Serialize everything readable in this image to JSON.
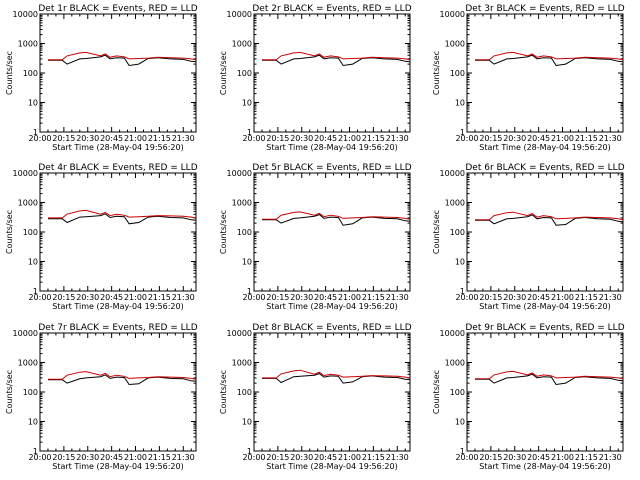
{
  "chart_data": [
    {
      "type": "line",
      "title": "Det 1r BLACK = Events, RED = LLD",
      "xlabel": "Start Time (28-May-04 19:56:20)",
      "ylabel": "Counts/sec",
      "x_ticks": [
        "20:00",
        "20:15",
        "20:30",
        "20:45",
        "21:00",
        "21:15",
        "21:30"
      ],
      "y_ticks": [
        "1",
        "10",
        "100",
        "1000",
        "10000"
      ],
      "yscale": "log",
      "ylim": [
        1,
        10000
      ],
      "x_range": [
        "20:00",
        "21:38"
      ],
      "series": [
        {
          "color": "#000000",
          "x": [
            "20:05",
            "20:14",
            "20:17",
            "20:25",
            "20:29",
            "20:38",
            "20:41",
            "20:44",
            "20:48",
            "20:53",
            "20:56",
            "21:02",
            "21:08",
            "21:14",
            "21:22",
            "21:30",
            "21:35",
            "21:38"
          ],
          "values": [
            270,
            270,
            200,
            300,
            310,
            350,
            400,
            300,
            330,
            320,
            180,
            200,
            310,
            330,
            300,
            290,
            250,
            240
          ]
        },
        {
          "color": "#cc0000",
          "x": [
            "20:05",
            "20:14",
            "20:17",
            "20:25",
            "20:29",
            "20:38",
            "20:41",
            "20:44",
            "20:48",
            "20:53",
            "20:56",
            "21:02",
            "21:08",
            "21:14",
            "21:22",
            "21:30",
            "21:35",
            "21:38"
          ],
          "values": [
            280,
            280,
            380,
            480,
            500,
            380,
            440,
            340,
            380,
            350,
            300,
            310,
            320,
            340,
            330,
            320,
            300,
            280
          ]
        }
      ]
    },
    {
      "type": "line",
      "title": "Det 2r BLACK = Events, RED = LLD",
      "xlabel": "Start Time (28-May-04 19:56:20)",
      "ylabel": "Counts/sec",
      "x_ticks": [
        "20:00",
        "20:15",
        "20:30",
        "20:45",
        "21:00",
        "21:15",
        "21:30"
      ],
      "y_ticks": [
        "1",
        "10",
        "100",
        "1000",
        "10000"
      ],
      "yscale": "log",
      "ylim": [
        1,
        10000
      ],
      "x_range": [
        "20:00",
        "21:38"
      ],
      "series": [
        {
          "color": "#000000",
          "x": [
            "20:05",
            "20:14",
            "20:17",
            "20:25",
            "20:29",
            "20:38",
            "20:41",
            "20:44",
            "20:48",
            "20:53",
            "20:56",
            "21:02",
            "21:08",
            "21:14",
            "21:22",
            "21:30",
            "21:35",
            "21:38"
          ],
          "values": [
            270,
            270,
            200,
            300,
            310,
            350,
            400,
            300,
            330,
            320,
            180,
            200,
            310,
            330,
            300,
            290,
            250,
            240
          ]
        },
        {
          "color": "#cc0000",
          "x": [
            "20:05",
            "20:14",
            "20:17",
            "20:25",
            "20:29",
            "20:38",
            "20:41",
            "20:44",
            "20:48",
            "20:53",
            "20:56",
            "21:02",
            "21:08",
            "21:14",
            "21:22",
            "21:30",
            "21:35",
            "21:38"
          ],
          "values": [
            280,
            280,
            380,
            480,
            500,
            380,
            440,
            340,
            380,
            350,
            300,
            310,
            320,
            340,
            330,
            320,
            300,
            280
          ]
        }
      ]
    },
    {
      "type": "line",
      "title": "Det 3r BLACK = Events, RED = LLD",
      "xlabel": "Start Time (28-May-04 19:56:20)",
      "ylabel": "Counts/sec",
      "x_ticks": [
        "20:00",
        "20:15",
        "20:30",
        "20:45",
        "21:00",
        "21:15",
        "21:30"
      ],
      "y_ticks": [
        "1",
        "10",
        "100",
        "1000",
        "10000"
      ],
      "yscale": "log",
      "ylim": [
        1,
        10000
      ],
      "x_range": [
        "20:00",
        "21:38"
      ],
      "series": [
        {
          "color": "#000000",
          "x": [
            "20:05",
            "20:14",
            "20:17",
            "20:25",
            "20:29",
            "20:38",
            "20:41",
            "20:44",
            "20:48",
            "20:53",
            "20:56",
            "21:02",
            "21:08",
            "21:14",
            "21:22",
            "21:30",
            "21:35",
            "21:38"
          ],
          "values": [
            270,
            270,
            200,
            300,
            310,
            350,
            400,
            300,
            330,
            320,
            180,
            200,
            310,
            330,
            300,
            290,
            250,
            240
          ]
        },
        {
          "color": "#cc0000",
          "x": [
            "20:05",
            "20:14",
            "20:17",
            "20:25",
            "20:29",
            "20:38",
            "20:41",
            "20:44",
            "20:48",
            "20:53",
            "20:56",
            "21:02",
            "21:08",
            "21:14",
            "21:22",
            "21:30",
            "21:35",
            "21:38"
          ],
          "values": [
            280,
            280,
            380,
            480,
            500,
            380,
            440,
            340,
            380,
            350,
            300,
            310,
            320,
            340,
            330,
            320,
            300,
            280
          ]
        }
      ]
    },
    {
      "type": "line",
      "title": "Det 4r BLACK = Events, RED = LLD",
      "xlabel": "Start Time (28-May-04 19:56:20)",
      "ylabel": "Counts/sec",
      "x_ticks": [
        "20:00",
        "20:15",
        "20:30",
        "20:45",
        "21:00",
        "21:15",
        "21:30"
      ],
      "y_ticks": [
        "1",
        "10",
        "100",
        "1000",
        "10000"
      ],
      "yscale": "log",
      "ylim": [
        1,
        10000
      ],
      "x_range": [
        "20:00",
        "21:38"
      ],
      "series": [
        {
          "color": "#000000",
          "x": [
            "20:05",
            "20:14",
            "20:17",
            "20:25",
            "20:29",
            "20:38",
            "20:41",
            "20:44",
            "20:48",
            "20:53",
            "20:56",
            "21:02",
            "21:08",
            "21:14",
            "21:22",
            "21:30",
            "21:35",
            "21:38"
          ],
          "values": [
            280,
            280,
            210,
            320,
            330,
            360,
            410,
            310,
            340,
            330,
            190,
            210,
            320,
            340,
            310,
            300,
            260,
            250
          ]
        },
        {
          "color": "#cc0000",
          "x": [
            "20:05",
            "20:14",
            "20:17",
            "20:25",
            "20:29",
            "20:38",
            "20:41",
            "20:44",
            "20:48",
            "20:53",
            "20:56",
            "21:02",
            "21:08",
            "21:14",
            "21:22",
            "21:30",
            "21:35",
            "21:38"
          ],
          "values": [
            300,
            300,
            400,
            520,
            540,
            400,
            460,
            360,
            400,
            370,
            320,
            330,
            340,
            360,
            350,
            340,
            320,
            300
          ]
        }
      ]
    },
    {
      "type": "line",
      "title": "Det 5r BLACK = Events, RED = LLD",
      "xlabel": "Start Time (28-May-04 19:56:20)",
      "ylabel": "Counts/sec",
      "x_ticks": [
        "20:00",
        "20:15",
        "20:30",
        "20:45",
        "21:00",
        "21:15",
        "21:30"
      ],
      "y_ticks": [
        "1",
        "10",
        "100",
        "1000",
        "10000"
      ],
      "yscale": "log",
      "ylim": [
        1,
        10000
      ],
      "x_range": [
        "20:00",
        "21:38"
      ],
      "series": [
        {
          "color": "#000000",
          "x": [
            "20:05",
            "20:14",
            "20:17",
            "20:25",
            "20:29",
            "20:38",
            "20:41",
            "20:44",
            "20:48",
            "20:53",
            "20:56",
            "21:02",
            "21:08",
            "21:14",
            "21:22",
            "21:30",
            "21:35",
            "21:38"
          ],
          "values": [
            260,
            260,
            200,
            290,
            300,
            340,
            390,
            290,
            320,
            310,
            170,
            190,
            300,
            320,
            290,
            280,
            240,
            230
          ]
        },
        {
          "color": "#cc0000",
          "x": [
            "20:05",
            "20:14",
            "20:17",
            "20:25",
            "20:29",
            "20:38",
            "20:41",
            "20:44",
            "20:48",
            "20:53",
            "20:56",
            "21:02",
            "21:08",
            "21:14",
            "21:22",
            "21:30",
            "21:35",
            "21:38"
          ],
          "values": [
            270,
            270,
            370,
            460,
            480,
            370,
            430,
            330,
            370,
            340,
            290,
            300,
            310,
            330,
            320,
            310,
            290,
            270
          ]
        }
      ]
    },
    {
      "type": "line",
      "title": "Det 6r BLACK = Events, RED = LLD",
      "xlabel": "Start Time (28-May-04 19:56:20)",
      "ylabel": "Counts/sec",
      "x_ticks": [
        "20:00",
        "20:15",
        "20:30",
        "20:45",
        "21:00",
        "21:15",
        "21:30"
      ],
      "y_ticks": [
        "1",
        "10",
        "100",
        "1000",
        "10000"
      ],
      "yscale": "log",
      "ylim": [
        1,
        10000
      ],
      "x_range": [
        "20:00",
        "21:38"
      ],
      "series": [
        {
          "color": "#000000",
          "x": [
            "20:05",
            "20:14",
            "20:17",
            "20:25",
            "20:29",
            "20:38",
            "20:41",
            "20:44",
            "20:48",
            "20:53",
            "20:56",
            "21:02",
            "21:08",
            "21:14",
            "21:22",
            "21:30",
            "21:35",
            "21:38"
          ],
          "values": [
            250,
            250,
            190,
            280,
            290,
            330,
            380,
            280,
            310,
            300,
            170,
            180,
            290,
            310,
            280,
            270,
            230,
            220
          ]
        },
        {
          "color": "#cc0000",
          "x": [
            "20:05",
            "20:14",
            "20:17",
            "20:25",
            "20:29",
            "20:38",
            "20:41",
            "20:44",
            "20:48",
            "20:53",
            "20:56",
            "21:02",
            "21:08",
            "21:14",
            "21:22",
            "21:30",
            "21:35",
            "21:38"
          ],
          "values": [
            260,
            260,
            360,
            450,
            470,
            360,
            420,
            320,
            360,
            330,
            280,
            290,
            300,
            320,
            310,
            300,
            280,
            260
          ]
        }
      ]
    },
    {
      "type": "line",
      "title": "Det 7r BLACK = Events, RED = LLD",
      "xlabel": "Start Time (28-May-04 19:56:20)",
      "ylabel": "Counts/sec",
      "x_ticks": [
        "20:00",
        "20:15",
        "20:30",
        "20:45",
        "21:00",
        "21:15",
        "21:30"
      ],
      "y_ticks": [
        "1",
        "10",
        "100",
        "1000",
        "10000"
      ],
      "yscale": "log",
      "ylim": [
        1,
        10000
      ],
      "x_range": [
        "20:00",
        "21:38"
      ],
      "series": [
        {
          "color": "#000000",
          "x": [
            "20:05",
            "20:14",
            "20:17",
            "20:25",
            "20:29",
            "20:38",
            "20:41",
            "20:44",
            "20:48",
            "20:53",
            "20:56",
            "21:02",
            "21:08",
            "21:14",
            "21:22",
            "21:30",
            "21:35",
            "21:38"
          ],
          "values": [
            260,
            260,
            200,
            280,
            300,
            330,
            380,
            290,
            320,
            310,
            180,
            190,
            300,
            320,
            290,
            280,
            240,
            230
          ]
        },
        {
          "color": "#cc0000",
          "x": [
            "20:05",
            "20:14",
            "20:17",
            "20:25",
            "20:29",
            "20:38",
            "20:41",
            "20:44",
            "20:48",
            "20:53",
            "20:56",
            "21:02",
            "21:08",
            "21:14",
            "21:22",
            "21:30",
            "21:35",
            "21:38"
          ],
          "values": [
            270,
            270,
            370,
            470,
            490,
            370,
            430,
            330,
            370,
            340,
            290,
            300,
            310,
            330,
            320,
            310,
            290,
            270
          ]
        }
      ]
    },
    {
      "type": "line",
      "title": "Det 8r BLACK = Events, RED = LLD",
      "xlabel": "Start Time (28-May-04 19:56:20)",
      "ylabel": "Counts/sec",
      "x_ticks": [
        "20:00",
        "20:15",
        "20:30",
        "20:45",
        "21:00",
        "21:15",
        "21:30"
      ],
      "y_ticks": [
        "1",
        "10",
        "100",
        "1000",
        "10000"
      ],
      "yscale": "log",
      "ylim": [
        1,
        10000
      ],
      "x_range": [
        "20:00",
        "21:38"
      ],
      "series": [
        {
          "color": "#000000",
          "x": [
            "20:05",
            "20:14",
            "20:17",
            "20:25",
            "20:29",
            "20:38",
            "20:41",
            "20:44",
            "20:48",
            "20:53",
            "20:56",
            "21:02",
            "21:08",
            "21:14",
            "21:22",
            "21:30",
            "21:35",
            "21:38"
          ],
          "values": [
            290,
            290,
            210,
            330,
            340,
            370,
            420,
            320,
            350,
            340,
            200,
            220,
            330,
            350,
            320,
            310,
            270,
            260
          ]
        },
        {
          "color": "#cc0000",
          "x": [
            "20:05",
            "20:14",
            "20:17",
            "20:25",
            "20:29",
            "20:38",
            "20:41",
            "20:44",
            "20:48",
            "20:53",
            "20:56",
            "21:02",
            "21:08",
            "21:14",
            "21:22",
            "21:30",
            "21:35",
            "21:38"
          ],
          "values": [
            300,
            300,
            410,
            520,
            550,
            400,
            470,
            360,
            400,
            370,
            320,
            330,
            340,
            360,
            350,
            340,
            320,
            300
          ]
        }
      ]
    },
    {
      "type": "line",
      "title": "Det 9r BLACK = Events, RED = LLD",
      "xlabel": "Start Time (28-May-04 19:56:20)",
      "ylabel": "Counts/sec",
      "x_ticks": [
        "20:00",
        "20:15",
        "20:30",
        "20:45",
        "21:00",
        "21:15",
        "21:30"
      ],
      "y_ticks": [
        "1",
        "10",
        "100",
        "1000",
        "10000"
      ],
      "yscale": "log",
      "ylim": [
        1,
        10000
      ],
      "x_range": [
        "20:00",
        "21:38"
      ],
      "series": [
        {
          "color": "#000000",
          "x": [
            "20:05",
            "20:14",
            "20:17",
            "20:25",
            "20:29",
            "20:38",
            "20:41",
            "20:44",
            "20:48",
            "20:53",
            "20:56",
            "21:02",
            "21:08",
            "21:14",
            "21:22",
            "21:30",
            "21:35",
            "21:38"
          ],
          "values": [
            270,
            270,
            200,
            300,
            310,
            350,
            400,
            300,
            330,
            320,
            180,
            200,
            310,
            330,
            300,
            290,
            250,
            240
          ]
        },
        {
          "color": "#cc0000",
          "x": [
            "20:05",
            "20:14",
            "20:17",
            "20:25",
            "20:29",
            "20:38",
            "20:41",
            "20:44",
            "20:48",
            "20:53",
            "20:56",
            "21:02",
            "21:08",
            "21:14",
            "21:22",
            "21:30",
            "21:35",
            "21:38"
          ],
          "values": [
            280,
            280,
            380,
            480,
            500,
            380,
            440,
            340,
            380,
            350,
            300,
            310,
            320,
            340,
            330,
            320,
            300,
            280
          ]
        }
      ]
    }
  ]
}
